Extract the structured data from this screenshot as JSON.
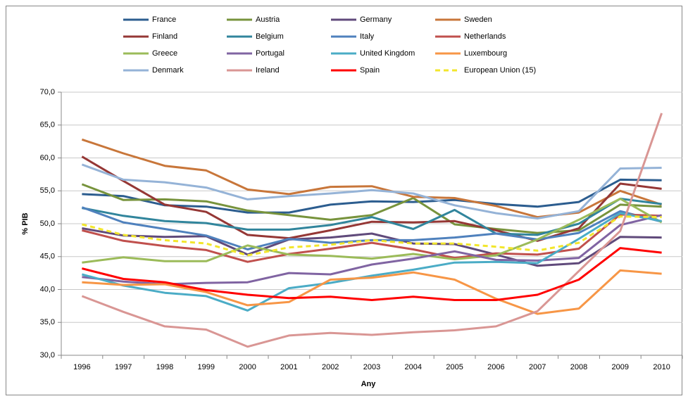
{
  "chart_data": {
    "type": "line",
    "x_label": "Any",
    "y_label": "% PIB",
    "categories": [
      "1996",
      "1997",
      "1998",
      "1999",
      "2000",
      "2001",
      "2002",
      "2003",
      "2004",
      "2005",
      "2006",
      "2007",
      "2008",
      "2009",
      "2010"
    ],
    "ylim": [
      30,
      70
    ],
    "yticks": [
      {
        "value": 30,
        "label": "30,0"
      },
      {
        "value": 35,
        "label": "35,0"
      },
      {
        "value": 40,
        "label": "40,0"
      },
      {
        "value": 45,
        "label": "45,0"
      },
      {
        "value": 50,
        "label": "50,0"
      },
      {
        "value": 55,
        "label": "55,0"
      },
      {
        "value": 60,
        "label": "60,0"
      },
      {
        "value": 65,
        "label": "65,0"
      },
      {
        "value": 70,
        "label": "70,0"
      }
    ],
    "grid": true,
    "legend": "top",
    "series": [
      {
        "name": "France",
        "color": "#2c5d8f",
        "values": [
          54.5,
          54.2,
          52.8,
          52.6,
          51.7,
          51.7,
          52.9,
          53.4,
          53.3,
          53.6,
          53.0,
          52.6,
          53.3,
          56.7,
          56.6
        ]
      },
      {
        "name": "Austria",
        "color": "#77933c",
        "values": [
          56.0,
          53.6,
          53.7,
          53.4,
          52.0,
          51.3,
          50.6,
          51.3,
          53.9,
          49.9,
          49.2,
          48.6,
          49.0,
          52.9,
          52.6
        ]
      },
      {
        "name": "Germany",
        "color": "#604a7b",
        "values": [
          49.3,
          48.2,
          48.0,
          48.1,
          45.3,
          47.6,
          47.9,
          48.5,
          47.0,
          46.9,
          45.3,
          43.6,
          44.0,
          48.0,
          47.9
        ]
      },
      {
        "name": "Sweden",
        "color": "#c8763a",
        "values": [
          62.8,
          60.7,
          58.8,
          58.1,
          55.2,
          54.5,
          55.6,
          55.7,
          54.1,
          53.9,
          52.7,
          51.0,
          51.7,
          55.0,
          52.9
        ]
      },
      {
        "name": "Finland",
        "color": "#953735",
        "values": [
          60.2,
          56.5,
          52.9,
          51.8,
          48.3,
          47.8,
          49.0,
          50.3,
          50.2,
          50.4,
          49.0,
          47.4,
          49.3,
          56.1,
          55.3
        ]
      },
      {
        "name": "Belgium",
        "color": "#31859c",
        "values": [
          52.4,
          51.2,
          50.4,
          50.1,
          49.1,
          49.1,
          49.8,
          51.0,
          49.2,
          52.1,
          48.5,
          48.3,
          50.0,
          53.8,
          53.0
        ]
      },
      {
        "name": "Italy",
        "color": "#4f81bd",
        "values": [
          52.5,
          50.2,
          49.2,
          48.2,
          46.1,
          47.7,
          47.1,
          47.5,
          47.5,
          47.9,
          48.5,
          47.6,
          48.6,
          51.9,
          50.3
        ]
      },
      {
        "name": "Netherlands",
        "color": "#c0504d",
        "values": [
          49.0,
          47.4,
          46.6,
          46.0,
          44.2,
          45.4,
          46.2,
          47.1,
          46.1,
          44.8,
          45.5,
          45.3,
          46.2,
          51.4,
          51.2
        ]
      },
      {
        "name": "Greece",
        "color": "#9bbb59",
        "values": [
          44.1,
          44.9,
          44.3,
          44.3,
          46.7,
          45.3,
          45.1,
          44.7,
          45.4,
          44.6,
          45.2,
          47.6,
          50.6,
          53.8,
          50.2
        ]
      },
      {
        "name": "Portugal",
        "color": "#8064a2",
        "values": [
          41.9,
          41.2,
          40.8,
          41.0,
          41.1,
          42.5,
          42.3,
          43.8,
          44.7,
          45.8,
          44.5,
          44.4,
          44.8,
          49.8,
          51.3
        ]
      },
      {
        "name": "United Kingdom",
        "color": "#4bacc6",
        "values": [
          42.3,
          40.6,
          39.5,
          39.0,
          36.8,
          40.2,
          41.0,
          42.1,
          43.0,
          44.1,
          44.2,
          44.0,
          47.7,
          51.6,
          50.4
        ]
      },
      {
        "name": "Luxembourg",
        "color": "#f79646",
        "values": [
          41.1,
          40.7,
          40.8,
          39.6,
          37.6,
          38.1,
          41.5,
          41.8,
          42.6,
          41.5,
          38.6,
          36.3,
          37.1,
          42.9,
          42.4
        ]
      },
      {
        "name": "Denmark",
        "color": "#95b3d7",
        "values": [
          59.0,
          56.7,
          56.3,
          55.5,
          53.7,
          54.2,
          54.6,
          55.1,
          54.6,
          52.8,
          51.6,
          50.8,
          51.9,
          58.4,
          58.5
        ]
      },
      {
        "name": "Ireland",
        "color": "#d99694",
        "values": [
          39.0,
          36.6,
          34.4,
          33.9,
          31.3,
          33.0,
          33.4,
          33.1,
          33.5,
          33.8,
          34.4,
          36.7,
          42.8,
          48.9,
          66.8
        ]
      },
      {
        "name": "Spain",
        "color": "#ff0000",
        "values": [
          43.2,
          41.6,
          41.1,
          39.9,
          39.2,
          38.7,
          38.9,
          38.4,
          38.9,
          38.4,
          38.4,
          39.2,
          41.5,
          46.3,
          45.6
        ]
      },
      {
        "name": "European Union (15)",
        "color": "#f2e62c",
        "line_style": "dashed",
        "values": [
          49.9,
          48.3,
          47.5,
          47.0,
          45.2,
          46.4,
          46.8,
          47.5,
          47.0,
          47.0,
          46.5,
          45.9,
          47.1,
          51.1,
          51.0
        ]
      }
    ]
  }
}
